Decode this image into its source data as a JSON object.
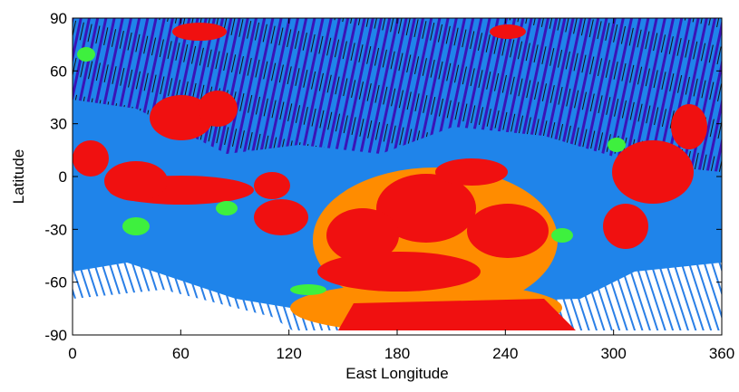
{
  "chart_data": {
    "type": "map",
    "xlabel": "East Longitude",
    "ylabel": "Latitude",
    "xlim": [
      0,
      360
    ],
    "ylim": [
      -90,
      90
    ],
    "xticks": [
      0,
      60,
      120,
      180,
      240,
      300,
      360
    ],
    "yticks": [
      -90,
      -60,
      -30,
      0,
      30,
      60,
      90
    ]
  }
}
